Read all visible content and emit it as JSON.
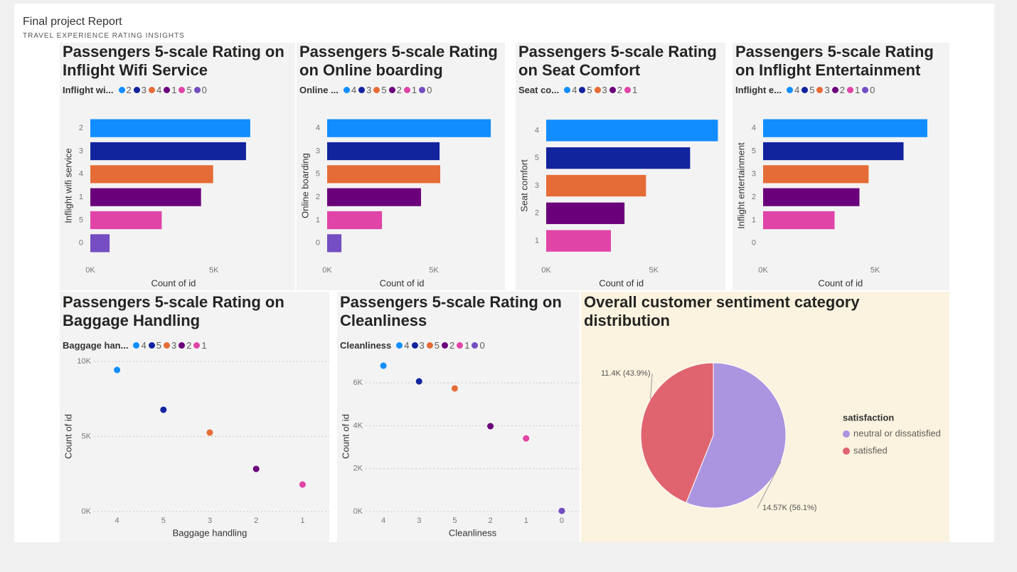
{
  "header": {
    "title": "Final project Report",
    "subtitle": "TRAVEL EXPERIENCE RATING INSIGHTS"
  },
  "chart_data": [
    {
      "type": "bar",
      "orientation": "horizontal",
      "title": "Passengers 5-scale Rating on Inflight Wifi Service",
      "legend_title": "Inflight wi...",
      "categories": [
        "2",
        "3",
        "4",
        "1",
        "5",
        "0"
      ],
      "values": [
        6470,
        6300,
        4970,
        4480,
        2890,
        780
      ],
      "colors": [
        "#118dff",
        "#12239e",
        "#e66c37",
        "#6b007b",
        "#e044a7",
        "#744ec2"
      ],
      "xlabel": "Count of id",
      "ylabel": "Inflight wifi service",
      "xlim": [
        0,
        8000
      ],
      "xticks": [
        {
          "value": 0,
          "label": "0K"
        },
        {
          "value": 5000,
          "label": "5K"
        }
      ],
      "grid": false
    },
    {
      "type": "bar",
      "orientation": "horizontal",
      "title": "Passengers 5-scale Rating on Online boarding",
      "legend_title": "Online ...",
      "categories": [
        "4",
        "3",
        "5",
        "2",
        "1",
        "0"
      ],
      "values": [
        7670,
        5270,
        5300,
        4400,
        2570,
        670
      ],
      "colors": [
        "#118dff",
        "#12239e",
        "#e66c37",
        "#6b007b",
        "#e044a7",
        "#744ec2"
      ],
      "xlabel": "Count of id",
      "ylabel": "Online boarding",
      "xlim": [
        0,
        8000
      ],
      "xticks": [
        {
          "value": 0,
          "label": "0K"
        },
        {
          "value": 5000,
          "label": "5K"
        }
      ],
      "grid": false
    },
    {
      "type": "bar",
      "orientation": "horizontal",
      "title": "Passengers 5-scale Rating on Seat Comfort",
      "legend_title": "Seat co...",
      "categories": [
        "4",
        "5",
        "3",
        "2",
        "1"
      ],
      "values": [
        7980,
        6690,
        4640,
        3640,
        3010
      ],
      "colors": [
        "#118dff",
        "#12239e",
        "#e66c37",
        "#6b007b",
        "#e044a7"
      ],
      "xlabel": "Count of id",
      "ylabel": "Seat comfort",
      "xlim": [
        0,
        8000
      ],
      "xticks": [
        {
          "value": 0,
          "label": "0K"
        },
        {
          "value": 5000,
          "label": "5K"
        }
      ],
      "grid": false
    },
    {
      "type": "bar",
      "orientation": "horizontal",
      "title": "Passengers 5-scale Rating on Inflight Entertainment",
      "legend_title": "Inflight e...",
      "categories": [
        "4",
        "5",
        "3",
        "2",
        "1",
        "0"
      ],
      "values": [
        7330,
        6270,
        4710,
        4300,
        3190,
        0
      ],
      "colors": [
        "#118dff",
        "#12239e",
        "#e66c37",
        "#6b007b",
        "#e044a7",
        "#744ec2"
      ],
      "xlabel": "Count of id",
      "ylabel": "Inflight entertainment",
      "xlim": [
        0,
        8000
      ],
      "xticks": [
        {
          "value": 0,
          "label": "0K"
        },
        {
          "value": 5000,
          "label": "5K"
        }
      ],
      "grid": false
    },
    {
      "type": "scatter",
      "title": "Passengers 5-scale Rating on Baggage Handling",
      "legend_title": "Baggage han...",
      "categories": [
        "4",
        "5",
        "3",
        "2",
        "1"
      ],
      "values": [
        9430,
        6780,
        5260,
        2840,
        1800
      ],
      "colors": [
        "#118dff",
        "#12239e",
        "#e66c37",
        "#6b007b",
        "#e044a7"
      ],
      "xlabel": "Baggage handling",
      "ylabel": "Count of id",
      "ylim": [
        0,
        10000
      ],
      "yticks": [
        {
          "value": 0,
          "label": "0K"
        },
        {
          "value": 5000,
          "label": "5K"
        },
        {
          "value": 10000,
          "label": "10K"
        }
      ],
      "grid": true
    },
    {
      "type": "scatter",
      "title": "Passengers 5-scale Rating on Cleanliness",
      "legend_title": "Cleanliness",
      "categories": [
        "4",
        "3",
        "5",
        "2",
        "1",
        "0"
      ],
      "values": [
        6800,
        6070,
        5740,
        3980,
        3410,
        30
      ],
      "colors": [
        "#118dff",
        "#12239e",
        "#e66c37",
        "#6b007b",
        "#e044a7",
        "#744ec2"
      ],
      "xlabel": "Cleanliness",
      "ylabel": "Count of id",
      "ylim": [
        0,
        7000
      ],
      "yticks": [
        {
          "value": 0,
          "label": "0K"
        },
        {
          "value": 2000,
          "label": "2K"
        },
        {
          "value": 4000,
          "label": "4K"
        },
        {
          "value": 6000,
          "label": "6K"
        }
      ],
      "grid": true
    },
    {
      "type": "pie",
      "title": "Overall customer sentiment category distribution",
      "legend_title": "satisfaction",
      "categories": [
        "neutral or dissatisfied",
        "satisfied"
      ],
      "values": [
        14570,
        11400
      ],
      "value_labels": [
        "14.57K (56.1%)",
        "11.4K (43.9%)"
      ],
      "colors": [
        "#ab94e0",
        "#e0646f"
      ]
    }
  ]
}
